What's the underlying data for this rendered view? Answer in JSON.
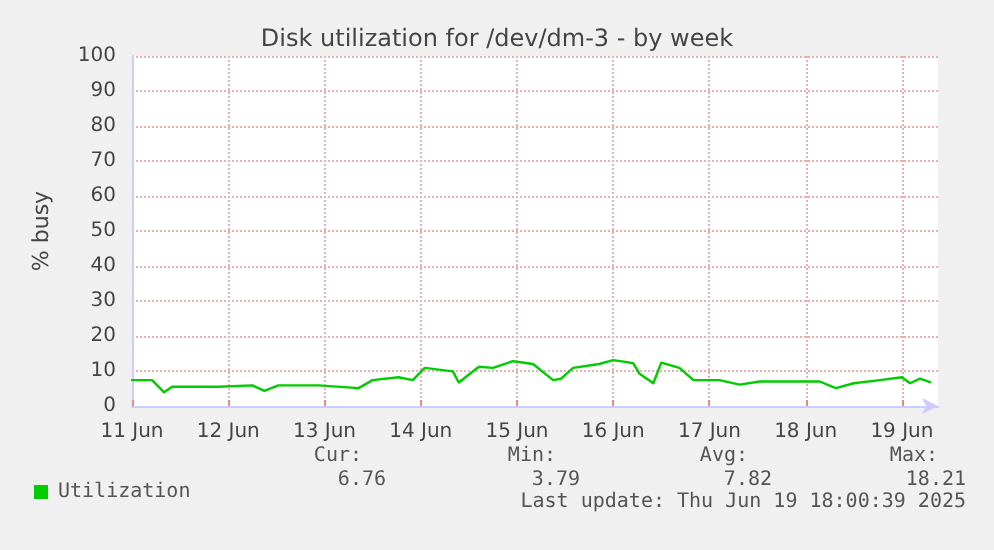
{
  "chart_data": {
    "type": "line",
    "title": "Disk utilization for /dev/dm-3 - by week",
    "ylabel": "% busy",
    "x": [
      "--06-11T00:00",
      "--06-11T05:00",
      "--06-11T08:00",
      "--06-11T10:00",
      "--06-11T21:30",
      "--06-12T06:00",
      "--06-12T09:00",
      "--06-12T12:30",
      "--06-12T22:30",
      "--06-13T08:30",
      "--06-13T12:00",
      "--06-13T18:30",
      "--06-13T22:00",
      "--06-14T01:00",
      "--06-14T08:00",
      "--06-14T09:30",
      "--06-14T14:30",
      "--06-14T18:00",
      "--06-14T23:00",
      "--06-15T04:00",
      "--06-15T09:00",
      "--06-15T11:00",
      "--06-15T14:00",
      "--06-15T20:30",
      "--06-16T00:00",
      "--06-16T03:00",
      "--06-16T05:00",
      "--06-16T06:30",
      "--06-16T10:00",
      "--06-16T12:00",
      "--06-16T16:30",
      "--06-16T20:00",
      "--06-17T02:30",
      "--06-17T07:30",
      "--06-17T12:30",
      "--06-18T03:30",
      "--06-18T07:30",
      "--06-18T12:00",
      "--06-18T18:30",
      "--06-19T00:00",
      "--06-19T02:00",
      "--06-19T04:30",
      "--06-19T07:00"
    ],
    "series": [
      {
        "name": "Utilization",
        "color": "#00cc00",
        "values": [
          7.4,
          7.4,
          3.9,
          5.5,
          5.5,
          5.9,
          4.3,
          5.9,
          5.9,
          5.1,
          7.4,
          8.2,
          7.4,
          10.9,
          9.9,
          6.7,
          11.2,
          10.9,
          12.8,
          12.0,
          7.4,
          7.8,
          10.9,
          12.0,
          13.1,
          12.6,
          12.2,
          9.3,
          6.5,
          12.4,
          10.9,
          7.4,
          7.4,
          6.1,
          7.0,
          7.0,
          5.1,
          6.5,
          7.4,
          8.2,
          6.5,
          7.8,
          6.8
        ]
      }
    ],
    "xlim": [
      "--06-11T00:00",
      "--06-19T09:00"
    ],
    "xticks": [
      {
        "value": "--06-11",
        "label": "11 Jun"
      },
      {
        "value": "--06-12",
        "label": "12 Jun"
      },
      {
        "value": "--06-13",
        "label": "13 Jun"
      },
      {
        "value": "--06-14",
        "label": "14 Jun"
      },
      {
        "value": "--06-15",
        "label": "15 Jun"
      },
      {
        "value": "--06-16",
        "label": "16 Jun"
      },
      {
        "value": "--06-17",
        "label": "17 Jun"
      },
      {
        "value": "--06-18",
        "label": "18 Jun"
      },
      {
        "value": "--06-19",
        "label": "19 Jun"
      }
    ],
    "ylim": [
      0,
      100
    ],
    "yticks": [
      0,
      10,
      20,
      30,
      40,
      50,
      60,
      70,
      80,
      90,
      100
    ],
    "grid": true,
    "legend": "bottom left",
    "marker": "none",
    "line_style": "solid",
    "annotations": [
      "Cur:",
      "Min:",
      "Avg:",
      "Max:",
      "6.76",
      "3.79",
      "7.82",
      "18.21",
      "Last update: Thu Jun 19 18:00:39 2025"
    ]
  }
}
